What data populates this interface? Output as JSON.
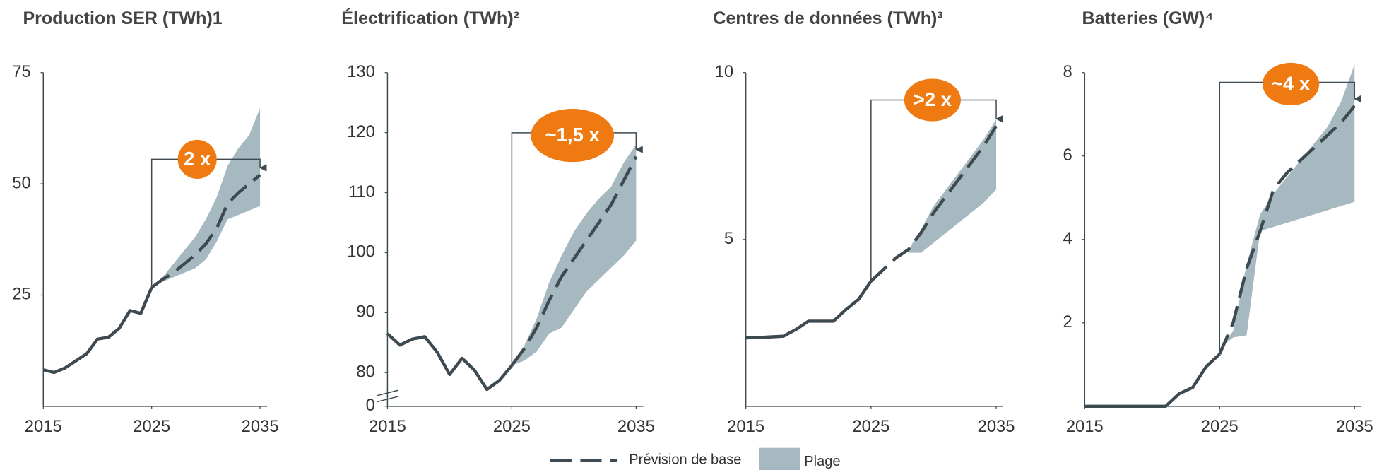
{
  "chart_data": [
    {
      "type": "line",
      "title": "Production SER (TWh)1",
      "x": [
        2015,
        2016,
        2017,
        2018,
        2019,
        2020,
        2021,
        2022,
        2023,
        2024,
        2025,
        2026,
        2027,
        2028,
        2029,
        2030,
        2031,
        2032,
        2033,
        2034,
        2035
      ],
      "xlim": [
        2015,
        2035
      ],
      "xticks": [
        2015,
        2025,
        2035
      ],
      "ylim": [
        0,
        75
      ],
      "yticks": [
        25,
        50,
        75
      ],
      "series": [
        {
          "color": "#3d4a52",
          "values": [
            8.2,
            7.6,
            8.6,
            10.2,
            11.8,
            15.1,
            15.5,
            17.5,
            21.5,
            20.9,
            26.7,
            null,
            null,
            null,
            null,
            null,
            null,
            null,
            null,
            null,
            null
          ]
        },
        {
          "name": "Prévision de base",
          "color": "#3d4a52",
          "dashed": true,
          "values": [
            null,
            null,
            null,
            null,
            null,
            null,
            null,
            null,
            null,
            null,
            26.7,
            28.5,
            30,
            32,
            34,
            36.5,
            40,
            45.5,
            48,
            50,
            52
          ]
        }
      ],
      "range": {
        "name": "Plage",
        "color": "#a6b9c0",
        "low": [
          null,
          null,
          null,
          null,
          null,
          null,
          null,
          null,
          null,
          null,
          26.7,
          28,
          29,
          30,
          31,
          33,
          37,
          42,
          43,
          44,
          45
        ],
        "high": [
          null,
          null,
          null,
          null,
          null,
          null,
          null,
          null,
          null,
          null,
          26.7,
          29,
          32,
          35,
          38,
          42,
          47,
          54,
          58,
          61,
          67
        ]
      },
      "annotation": {
        "text": "2 x",
        "color": "#f07a12"
      }
    },
    {
      "type": "line",
      "title": "Électrification (TWh)²",
      "x": [
        2015,
        2016,
        2017,
        2018,
        2019,
        2020,
        2021,
        2022,
        2023,
        2024,
        2025,
        2026,
        2027,
        2028,
        2029,
        2030,
        2031,
        2032,
        2033,
        2034,
        2035
      ],
      "xlim": [
        2015,
        2035
      ],
      "xticks": [
        2015,
        2025,
        2035
      ],
      "ylim": [
        0,
        130
      ],
      "ybreak": [
        0,
        74.4
      ],
      "yticks": [
        0,
        80,
        90,
        100,
        110,
        120,
        130
      ],
      "series": [
        {
          "color": "#3d4a52",
          "values": [
            86.5,
            84.6,
            85.6,
            86.0,
            83.4,
            79.7,
            82.4,
            80.4,
            77.2,
            78.7,
            81.2,
            null,
            null,
            null,
            null,
            null,
            null,
            null,
            null,
            null,
            null
          ]
        },
        {
          "color": "#3d4a52",
          "dashed": true,
          "values": [
            null,
            null,
            null,
            null,
            null,
            null,
            null,
            null,
            null,
            null,
            81.2,
            84,
            87.5,
            92,
            96,
            99,
            102,
            105,
            108,
            112,
            116
          ]
        }
      ],
      "range": {
        "color": "#a6b9c0",
        "low": [
          null,
          null,
          null,
          null,
          null,
          null,
          null,
          null,
          null,
          null,
          81.2,
          82,
          83.5,
          86.5,
          87.5,
          90.5,
          93.5,
          95.5,
          97.5,
          99.5,
          102
        ],
        "high": [
          null,
          null,
          null,
          null,
          null,
          null,
          null,
          null,
          null,
          null,
          81.2,
          84.5,
          89,
          95,
          99.5,
          103.5,
          106.5,
          109,
          111,
          115,
          118
        ]
      },
      "annotation": {
        "text": "~1,5 x",
        "color": "#f07a12"
      }
    },
    {
      "type": "line",
      "title": "Centres de données (TWh)³",
      "x": [
        2015,
        2016,
        2017,
        2018,
        2019,
        2020,
        2021,
        2022,
        2023,
        2024,
        2025,
        2026,
        2027,
        2028,
        2029,
        2030,
        2031,
        2032,
        2033,
        2034,
        2035
      ],
      "xlim": [
        2015,
        2035
      ],
      "xticks": [
        2015,
        2025,
        2035
      ],
      "ylim": [
        0,
        10
      ],
      "yticks": [
        5,
        10
      ],
      "series": [
        {
          "color": "#3d4a52",
          "values": [
            2.05,
            2.06,
            2.08,
            2.1,
            2.3,
            2.55,
            2.55,
            2.55,
            2.9,
            3.2,
            3.75,
            null,
            null,
            null,
            null,
            null,
            null,
            null,
            null,
            null,
            null
          ]
        },
        {
          "color": "#3d4a52",
          "dashed": true,
          "values": [
            null,
            null,
            null,
            null,
            null,
            null,
            null,
            null,
            null,
            null,
            3.75,
            4.1,
            4.45,
            4.7,
            5.2,
            5.8,
            6.3,
            6.8,
            7.3,
            7.8,
            8.4
          ]
        }
      ],
      "range": {
        "color": "#a6b9c0",
        "low": [
          null,
          null,
          null,
          null,
          null,
          null,
          null,
          null,
          null,
          null,
          null,
          null,
          null,
          4.6,
          4.6,
          4.9,
          5.2,
          5.5,
          5.8,
          6.1,
          6.5
        ],
        "high": [
          null,
          null,
          null,
          null,
          null,
          null,
          null,
          null,
          null,
          null,
          null,
          null,
          null,
          4.7,
          5.3,
          6,
          6.5,
          7,
          7.5,
          8,
          8.6
        ]
      },
      "annotation": {
        "text": ">2 x",
        "color": "#f07a12"
      }
    },
    {
      "type": "line",
      "title": "Batteries (GW)⁴",
      "x": [
        2015,
        2016,
        2017,
        2018,
        2019,
        2020,
        2021,
        2022,
        2023,
        2024,
        2025,
        2026,
        2027,
        2028,
        2029,
        2030,
        2031,
        2032,
        2033,
        2034,
        2035
      ],
      "xlim": [
        2015,
        2035
      ],
      "xticks": [
        2015,
        2025,
        2035
      ],
      "ylim": [
        0,
        8
      ],
      "yticks": [
        2,
        4,
        6,
        8
      ],
      "series": [
        {
          "color": "#3d4a52",
          "values": [
            0,
            0,
            0,
            0,
            0,
            0,
            0,
            0.3,
            0.45,
            0.95,
            1.25,
            null,
            null,
            null,
            null,
            null,
            null,
            null,
            null,
            null,
            null
          ]
        },
        {
          "color": "#3d4a52",
          "dashed": true,
          "values": [
            null,
            null,
            null,
            null,
            null,
            null,
            null,
            null,
            null,
            null,
            1.25,
            2.0,
            3.3,
            4.2,
            5.2,
            5.6,
            5.9,
            6.2,
            6.5,
            6.8,
            7.2
          ]
        }
      ],
      "range": {
        "color": "#a6b9c0",
        "low": [
          null,
          null,
          null,
          null,
          null,
          null,
          null,
          null,
          null,
          null,
          1.4,
          1.65,
          1.7,
          4.2,
          4.3,
          4.4,
          4.5,
          4.6,
          4.7,
          4.8,
          4.9
        ],
        "high": [
          null,
          null,
          null,
          null,
          null,
          null,
          null,
          null,
          null,
          null,
          1.4,
          1.8,
          3.4,
          4.6,
          5.1,
          5.5,
          5.9,
          6.3,
          6.7,
          7.3,
          8.2
        ]
      },
      "annotation": {
        "text": "~4 x",
        "color": "#f07a12"
      }
    }
  ]
}
